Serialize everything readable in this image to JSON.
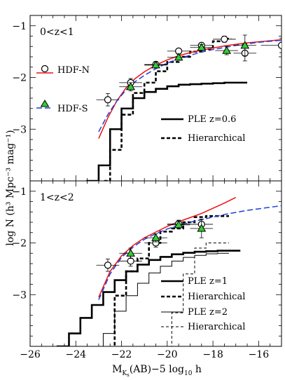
{
  "figure": {
    "ylabel": "log N (h³ Mpc⁻³ mag⁻¹)",
    "xlabel_parts": [
      "M",
      "K",
      "s",
      "(AB)−5 log",
      "10",
      " h"
    ]
  },
  "chart_data": [
    {
      "type": "line",
      "panel_label": "0<z<1",
      "xlim": [
        -26,
        -15
      ],
      "ylim": [
        -4,
        -0.8
      ],
      "invert_y": true,
      "xticks": [
        -26,
        -24,
        -22,
        -20,
        -18,
        -16
      ],
      "yticks": [
        -1,
        -2,
        -3
      ],
      "series": [
        {
          "name": "HDF-N",
          "kind": "points",
          "marker": "circle",
          "color": "#000000",
          "x": [
            -22.6,
            -21.6,
            -20.5,
            -19.5,
            -18.5,
            -17.5,
            -16.6,
            -15.0
          ],
          "y": [
            -2.43,
            -2.1,
            -1.75,
            -1.49,
            -1.38,
            -1.26,
            -1.53,
            -1.38
          ],
          "xerr": [
            0.5,
            0.5,
            0.5,
            0.5,
            0.5,
            0.5,
            0.5,
            0.9
          ],
          "yerr": [
            0.12,
            0.08,
            0.06,
            0.05,
            0.05,
            0.06,
            0.15,
            0.14
          ]
        },
        {
          "name": "HDF-S",
          "kind": "points",
          "marker": "triangle",
          "color": "#33cc33",
          "x": [
            -21.6,
            -20.5,
            -19.5,
            -18.5,
            -17.4,
            -16.6
          ],
          "y": [
            -2.18,
            -1.76,
            -1.61,
            -1.42,
            -1.48,
            -1.38
          ],
          "xerr": [
            0.5,
            0.5,
            0.5,
            0.5,
            0.5,
            0.5
          ],
          "yerr": [
            0.08,
            0.06,
            0.06,
            0.06,
            0.08,
            0.2
          ]
        },
        {
          "name": "PLE z=0.6",
          "kind": "step",
          "stroke": 2.6,
          "dash": "",
          "color": "#000000",
          "x": [
            -23.5,
            -23.0,
            -22.5,
            -22.0,
            -21.5,
            -21.0,
            -20.5,
            -20.0,
            -19.5,
            -19.0,
            -18.5,
            -18.0,
            -17.5,
            -17.0
          ],
          "y": [
            -4.0,
            -3.7,
            -3.0,
            -2.6,
            -2.4,
            -2.28,
            -2.22,
            -2.17,
            -2.14,
            -2.13,
            -2.12,
            -2.11,
            -2.1,
            -2.1
          ]
        },
        {
          "name": "Hierarchical",
          "kind": "step",
          "stroke": 2.6,
          "dash": "5,3",
          "color": "#000000",
          "x": [
            -22.8,
            -22.5,
            -22.0,
            -21.5,
            -21.0,
            -20.5,
            -20.0,
            -19.5,
            -19.0,
            -18.5,
            -18.0,
            -17.5
          ],
          "y": [
            -4.0,
            -3.4,
            -2.72,
            -2.3,
            -2.1,
            -1.88,
            -1.7,
            -1.6,
            -1.5,
            -1.45,
            -1.3,
            -1.25
          ]
        },
        {
          "name": "",
          "kind": "curve",
          "stroke": 1.5,
          "dash": "",
          "color": "#ee1111",
          "x": [
            -23.0,
            -22.6,
            -22.2,
            -21.8,
            -21.4,
            -21.0,
            -20.5,
            -20.0,
            -19.5,
            -19.0,
            -18.5,
            -18.0,
            -17.5,
            -17.0,
            -16.5,
            -16.0,
            -15.5,
            -15.0
          ],
          "y": [
            -3.18,
            -2.78,
            -2.45,
            -2.2,
            -2.02,
            -1.89,
            -1.76,
            -1.66,
            -1.58,
            -1.52,
            -1.47,
            -1.43,
            -1.39,
            -1.36,
            -1.33,
            -1.31,
            -1.29,
            -1.27
          ]
        },
        {
          "name": "",
          "kind": "curve",
          "stroke": 1.5,
          "dash": "8,4",
          "color": "#1a3fdd",
          "x": [
            -23.0,
            -22.6,
            -22.2,
            -21.8,
            -21.4,
            -21.0,
            -20.5,
            -20.0,
            -19.5,
            -19.0,
            -18.5,
            -18.0,
            -17.5,
            -17.0,
            -16.5,
            -16.0,
            -15.5,
            -15.0
          ],
          "y": [
            -3.05,
            -2.72,
            -2.45,
            -2.24,
            -2.08,
            -1.96,
            -1.83,
            -1.72,
            -1.64,
            -1.57,
            -1.51,
            -1.46,
            -1.42,
            -1.38,
            -1.35,
            -1.32,
            -1.3,
            -1.28
          ]
        }
      ]
    },
    {
      "type": "line",
      "panel_label": "1<z<2",
      "xlim": [
        -26,
        -15
      ],
      "ylim": [
        -4,
        -0.8
      ],
      "invert_y": true,
      "xticks": [
        -26,
        -24,
        -22,
        -20,
        -18,
        -16
      ],
      "yticks": [
        -1,
        -2,
        -3
      ],
      "series": [
        {
          "name": "",
          "kind": "points",
          "marker": "circle",
          "color": "#000000",
          "x": [
            -22.6,
            -21.6,
            -20.5,
            -19.5,
            -18.5
          ],
          "y": [
            -2.43,
            -2.35,
            -2.0,
            -1.63,
            -1.64
          ],
          "xerr": [
            0.5,
            0.5,
            0.5,
            0.5,
            0.5
          ],
          "yerr": [
            0.12,
            0.1,
            0.08,
            0.07,
            0.1
          ]
        },
        {
          "name": "",
          "kind": "points",
          "marker": "triangle",
          "color": "#33cc33",
          "x": [
            -21.6,
            -20.5,
            -19.5,
            -18.5
          ],
          "y": [
            -2.2,
            -1.9,
            -1.65,
            -1.72
          ],
          "xerr": [
            0.5,
            0.5,
            0.5,
            0.5
          ],
          "yerr": [
            0.1,
            0.08,
            0.07,
            0.18
          ]
        },
        {
          "name": "PLE z=1",
          "kind": "step",
          "stroke": 2.6,
          "dash": "",
          "color": "#000000",
          "x": [
            -24.8,
            -24.3,
            -23.8,
            -23.3,
            -22.8,
            -22.3,
            -21.8,
            -21.3,
            -20.8,
            -20.3,
            -19.8,
            -19.3,
            -18.8,
            -18.3,
            -17.8,
            -17.3
          ],
          "y": [
            -4.0,
            -3.75,
            -3.45,
            -3.2,
            -2.95,
            -2.72,
            -2.55,
            -2.42,
            -2.33,
            -2.27,
            -2.22,
            -2.19,
            -2.17,
            -2.16,
            -2.15,
            -2.15
          ]
        },
        {
          "name": "Hierarchical",
          "kind": "step",
          "stroke": 2.6,
          "dash": "5,3",
          "color": "#000000",
          "x": [
            -22.3,
            -21.8,
            -21.3,
            -20.8,
            -20.3,
            -19.8,
            -19.3,
            -18.8,
            -18.3,
            -17.8
          ],
          "y": [
            -3.02,
            -2.55,
            -2.3,
            -2.0,
            -1.78,
            -1.72,
            -1.6,
            -1.5,
            -1.48,
            -1.48
          ]
        },
        {
          "name": "PLE z=2",
          "kind": "step",
          "stroke": 1,
          "dash": "",
          "color": "#000000",
          "x": [
            -23.3,
            -22.8,
            -22.3,
            -21.8,
            -21.3,
            -20.8,
            -20.3,
            -19.8,
            -19.3,
            -18.8,
            -18.3,
            -17.8
          ],
          "y": [
            -4.0,
            -3.75,
            -3.32,
            -3.02,
            -2.78,
            -2.58,
            -2.45,
            -2.35,
            -2.28,
            -2.24,
            -2.21,
            -2.2
          ]
        },
        {
          "name": "Hierarchical",
          "kind": "step",
          "stroke": 1,
          "dash": "4,3",
          "color": "#000000",
          "x": [
            -20.3,
            -19.8,
            -19.3,
            -18.8,
            -18.3,
            -17.8
          ],
          "y": [
            -4.0,
            -3.35,
            -2.6,
            -2.1,
            -2.0,
            -2.0
          ]
        },
        {
          "name": "",
          "kind": "curve",
          "stroke": 1.5,
          "dash": "",
          "color": "#ee1111",
          "x": [
            -23.0,
            -22.5,
            -22.0,
            -21.5,
            -21.0,
            -20.5,
            -20.0,
            -19.5,
            -19.0,
            -18.5,
            -18.0,
            -17.5,
            -17.0
          ],
          "y": [
            -3.05,
            -2.55,
            -2.25,
            -2.05,
            -1.9,
            -1.79,
            -1.68,
            -1.59,
            -1.51,
            -1.43,
            -1.33,
            -1.23,
            -1.12
          ]
        },
        {
          "name": "",
          "kind": "curve",
          "stroke": 1.5,
          "dash": "8,4",
          "color": "#1a3fdd",
          "x": [
            -23.0,
            -22.5,
            -22.0,
            -21.5,
            -21.0,
            -20.5,
            -20.0,
            -19.5,
            -19.0,
            -18.5,
            -18.0,
            -17.5,
            -17.0,
            -16.5,
            -16.0,
            -15.5,
            -15.0
          ],
          "y": [
            -3.1,
            -2.6,
            -2.28,
            -2.08,
            -1.93,
            -1.82,
            -1.73,
            -1.66,
            -1.6,
            -1.55,
            -1.5,
            -1.45,
            -1.41,
            -1.37,
            -1.34,
            -1.31,
            -1.28
          ]
        }
      ]
    }
  ]
}
